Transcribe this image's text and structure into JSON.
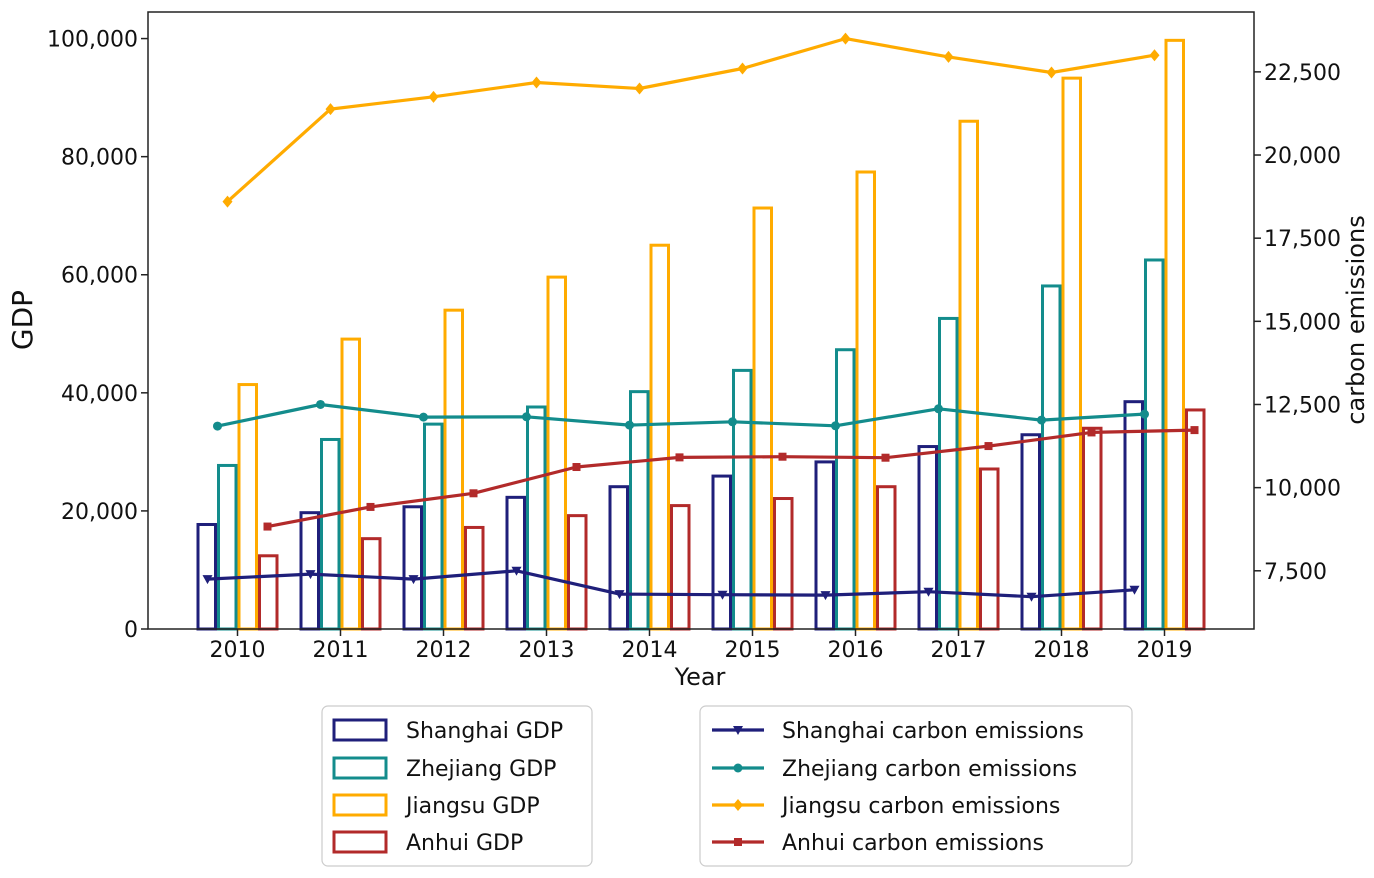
{
  "chart_data": {
    "type": "bar+line",
    "title": "",
    "xlabel": "Year",
    "ylabel": "GDP",
    "y2label": "carbon emissions",
    "categories": [
      "2010",
      "2011",
      "2012",
      "2013",
      "2014",
      "2015",
      "2016",
      "2017",
      "2018",
      "2019"
    ],
    "ylim": [
      0,
      104500
    ],
    "y2lim": [
      5750,
      24300
    ],
    "yticks": [
      0,
      20000,
      40000,
      60000,
      80000,
      100000
    ],
    "ytick_labels": [
      "0",
      "20,000",
      "40,000",
      "60,000",
      "80,000",
      "100,000"
    ],
    "y2ticks": [
      7500,
      10000,
      12500,
      15000,
      17500,
      20000,
      22500
    ],
    "y2tick_labels": [
      "7,500",
      "10,000",
      "12,500",
      "15,000",
      "17,500",
      "20,000",
      "22,500"
    ],
    "bar_series": [
      {
        "name": "Shanghai GDP",
        "color": "#1f1f7a",
        "values": [
          17700,
          19700,
          20700,
          22300,
          24100,
          25900,
          28300,
          30900,
          32900,
          38500
        ]
      },
      {
        "name": "Zhejiang GDP",
        "color": "#138c8c",
        "values": [
          27700,
          32100,
          34700,
          37600,
          40200,
          43800,
          47300,
          52600,
          58100,
          62500
        ]
      },
      {
        "name": "Jiangsu GDP",
        "color": "#ffab00",
        "values": [
          41400,
          49100,
          54000,
          59600,
          65000,
          71300,
          77400,
          86000,
          93300,
          99700
        ]
      },
      {
        "name": "Anhui GDP",
        "color": "#b22a2a",
        "values": [
          12400,
          15300,
          17200,
          19200,
          20900,
          22100,
          24100,
          27100,
          34000,
          37100
        ]
      }
    ],
    "line_series": [
      {
        "name": "Shanghai carbon emissions",
        "color": "#1f1f7a",
        "marker": "triangle-down",
        "values": [
          7250,
          7400,
          7250,
          7500,
          6800,
          6780,
          6770,
          6870,
          6720,
          6930
        ]
      },
      {
        "name": "Zhejiang carbon emissions",
        "color": "#138c8c",
        "marker": "circle",
        "values": [
          11850,
          12500,
          12120,
          12130,
          11880,
          11980,
          11860,
          12370,
          12030,
          12210
        ]
      },
      {
        "name": "Jiangsu carbon emissions",
        "color": "#ffab00",
        "marker": "diamond",
        "values": [
          18600,
          21380,
          21750,
          22180,
          22000,
          22600,
          23500,
          22950,
          22480,
          23000
        ]
      },
      {
        "name": "Anhui carbon emissions",
        "color": "#b22a2a",
        "marker": "square",
        "values": [
          8830,
          9420,
          9830,
          10620,
          10910,
          10930,
          10900,
          11250,
          11660,
          11730
        ]
      }
    ],
    "legend": [
      "Shanghai GDP",
      "Zhejiang GDP",
      "Jiangsu GDP",
      "Anhui GDP",
      "Shanghai carbon emissions",
      "Zhejiang carbon emissions",
      "Jiangsu carbon emissions",
      "Anhui carbon emissions"
    ],
    "legend_position": "bottom"
  }
}
